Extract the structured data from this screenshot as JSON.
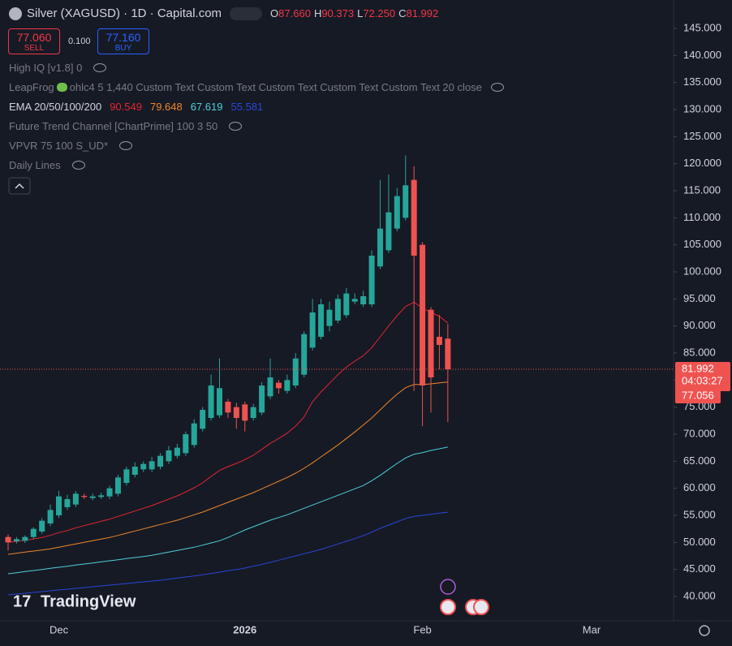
{
  "header": {
    "title": "Silver (XAGUSD) · 1D · Capital.com",
    "ohlc": [
      {
        "key": "O",
        "value": "87.660"
      },
      {
        "key": "H",
        "value": "90.373"
      },
      {
        "key": "L",
        "value": "72.250"
      },
      {
        "key": "C",
        "value": "81.992"
      }
    ]
  },
  "trade": {
    "sell_price": "77.060",
    "sell": "SELL",
    "spread": "0.100",
    "buy_price": "77.160",
    "buy": "BUY"
  },
  "indicators": {
    "high_iq": "High IQ [v1.8] 0",
    "leapfrog": "LeapFrog",
    "leapfrog_params": "ohlc4 5 1,440 Custom Text Custom Text Custom Text Custom Text Custom Text 20 close",
    "ema": "EMA 20/50/100/200",
    "future_trend": "Future Trend Channel [ChartPrime] 100 3 50",
    "vpvr": "VPVR 75 100 S_UD*",
    "daily_lines": "Daily Lines"
  },
  "branding": "TradingView",
  "chart_data": {
    "type": "candlestick",
    "categories": [
      null,
      null,
      null,
      null,
      null,
      null,
      "Dec",
      null,
      null,
      null,
      null,
      null,
      null,
      null,
      null,
      null,
      null,
      null,
      null,
      null,
      null,
      null,
      null,
      null,
      null,
      null,
      null,
      null,
      "2026",
      null,
      null,
      null,
      null,
      null,
      null,
      null,
      null,
      null,
      null,
      null,
      null,
      null,
      null,
      null,
      null,
      null,
      null,
      null,
      null,
      "Feb",
      null,
      null,
      null,
      null,
      null,
      null,
      null,
      null,
      null,
      null,
      null,
      null,
      null,
      null,
      null,
      null,
      null,
      null,
      null,
      "Mar"
    ],
    "open": [
      51,
      50.2,
      50.3,
      51,
      52,
      53.5,
      55,
      56.5,
      57,
      58.6,
      58.2,
      58.4,
      58.5,
      59,
      61,
      62.5,
      63.5,
      63.5,
      64,
      65,
      66,
      66.5,
      68,
      71,
      73,
      73.5,
      76,
      75,
      75.5,
      73,
      74,
      77,
      79.5,
      78,
      79,
      81,
      86,
      88,
      90,
      91,
      92,
      94.5,
      94,
      94,
      101,
      104,
      108,
      110,
      117,
      105,
      93,
      88,
      87.66,
      null,
      null,
      null,
      null,
      null,
      null,
      null,
      null,
      null,
      null,
      null,
      null,
      null,
      null,
      null,
      null,
      null
    ],
    "high": [
      51.5,
      51,
      51.3,
      52.8,
      54.5,
      57,
      59.5,
      58.8,
      59.5,
      59,
      59,
      59.2,
      60.5,
      62.5,
      64,
      64.8,
      65,
      65.8,
      66.5,
      67.8,
      68.2,
      70.5,
      72.8,
      75,
      81,
      84,
      76.5,
      75.8,
      76,
      75.6,
      79.6,
      84,
      80,
      81,
      85,
      89,
      95,
      95,
      94.5,
      95.8,
      97,
      96,
      96.5,
      104,
      117,
      118,
      115.5,
      121.5,
      119.5,
      105.5,
      93.5,
      92,
      90.373,
      null,
      null,
      null,
      null,
      null,
      null,
      null,
      null,
      null,
      null,
      null,
      null,
      null,
      null,
      null,
      null,
      null
    ],
    "low": [
      48.5,
      49.8,
      49.9,
      50.6,
      51.6,
      53,
      54.5,
      56,
      56.5,
      58,
      57.8,
      58,
      58,
      58.5,
      60.5,
      62,
      63,
      63,
      63.5,
      64.5,
      65.5,
      66,
      67.5,
      70.5,
      72.5,
      73,
      73,
      71,
      70.5,
      72.5,
      73.5,
      76.5,
      77.5,
      77.5,
      78.5,
      80.5,
      85.5,
      87.5,
      89,
      90.5,
      91.5,
      94,
      93.5,
      93.5,
      100.5,
      103.5,
      107.5,
      109.5,
      78,
      71.5,
      74,
      82,
      72.25,
      null,
      null,
      null,
      null,
      null,
      null,
      null,
      null,
      null,
      null,
      null,
      null,
      null,
      null,
      null,
      null,
      null
    ],
    "close": [
      50,
      50.6,
      51,
      52.5,
      54,
      56,
      58.5,
      58,
      59,
      58.4,
      58.5,
      58.7,
      60,
      62,
      63.5,
      64,
      64.5,
      65,
      66,
      67,
      67.5,
      70,
      72,
      74.5,
      79,
      78.5,
      74,
      73,
      72.5,
      75,
      79,
      80.5,
      78.5,
      80,
      84,
      88.5,
      92.5,
      94,
      93,
      95,
      96,
      95,
      95.5,
      103,
      108,
      111,
      114,
      116,
      103,
      79,
      80.5,
      86.5,
      81.992,
      null,
      null,
      null,
      null,
      null,
      null,
      null,
      null,
      null,
      null,
      null,
      null,
      null,
      null,
      null,
      null,
      null
    ],
    "up_color": "#26a69a",
    "down_color": "#ef5350",
    "series": [
      {
        "color": "#e3262e",
        "values": [
          50.0,
          50.2,
          50.4,
          50.6,
          50.9,
          51.3,
          51.8,
          52.2,
          52.7,
          53.1,
          53.5,
          53.9,
          54.3,
          54.8,
          55.3,
          55.8,
          56.3,
          56.8,
          57.4,
          58.0,
          58.6,
          59.3,
          60.1,
          61.0,
          62.2,
          63.3,
          64.0,
          64.6,
          65.3,
          66.1,
          67.2,
          68.3,
          69.2,
          70.2,
          71.5,
          73.2,
          76.0,
          77.8,
          79.4,
          81.0,
          82.4,
          83.5,
          84.5,
          86.0,
          88.0,
          90.0,
          91.9,
          93.6,
          94.4,
          93.3,
          92.5,
          91.8,
          90.549,
          null,
          null,
          null,
          null,
          null,
          null,
          null,
          null,
          null,
          null,
          null,
          null,
          null,
          null,
          null,
          null,
          null
        ]
      },
      {
        "color": "#f0862a",
        "values": [
          47.8,
          48.0,
          48.2,
          48.4,
          48.6,
          48.8,
          49.1,
          49.4,
          49.7,
          50.0,
          50.3,
          50.6,
          50.9,
          51.3,
          51.7,
          52.1,
          52.5,
          52.9,
          53.3,
          53.7,
          54.1,
          54.6,
          55.1,
          55.6,
          56.2,
          56.8,
          57.4,
          58.0,
          58.6,
          59.2,
          59.9,
          60.6,
          61.3,
          62.0,
          62.8,
          63.7,
          64.7,
          65.8,
          66.9,
          68.0,
          69.2,
          70.4,
          71.7,
          73.0,
          74.5,
          76.0,
          77.4,
          78.6,
          79.2,
          79.2,
          79.3,
          79.5,
          79.648,
          null,
          null,
          null,
          null,
          null,
          null,
          null,
          null,
          null,
          null,
          null,
          null,
          null,
          null,
          null,
          null,
          null
        ]
      },
      {
        "color": "#4dd0d6",
        "values": [
          44.2,
          44.4,
          44.6,
          44.8,
          45.0,
          45.2,
          45.4,
          45.6,
          45.8,
          46.0,
          46.2,
          46.4,
          46.6,
          46.8,
          47.0,
          47.2,
          47.4,
          47.6,
          47.9,
          48.2,
          48.5,
          48.8,
          49.1,
          49.5,
          49.9,
          50.3,
          50.9,
          51.6,
          52.3,
          52.9,
          53.5,
          54.1,
          54.6,
          55.1,
          55.7,
          56.3,
          56.9,
          57.5,
          58.1,
          58.7,
          59.3,
          59.9,
          60.5,
          61.4,
          62.4,
          63.5,
          64.6,
          65.6,
          66.3,
          66.6,
          67.0,
          67.3,
          67.619,
          null,
          null,
          null,
          null,
          null,
          null,
          null,
          null,
          null,
          null,
          null,
          null,
          null,
          null,
          null,
          null,
          null
        ]
      },
      {
        "color": "#2a46d6",
        "values": [
          40.3,
          40.45,
          40.6,
          40.75,
          40.9,
          41.05,
          41.2,
          41.35,
          41.5,
          41.65,
          41.8,
          41.95,
          42.1,
          42.25,
          42.4,
          42.55,
          42.7,
          42.85,
          43.0,
          43.2,
          43.4,
          43.6,
          43.8,
          44.0,
          44.25,
          44.5,
          44.75,
          45.0,
          45.25,
          45.6,
          45.95,
          46.3,
          46.7,
          47.1,
          47.5,
          47.9,
          48.3,
          48.7,
          49.2,
          49.7,
          50.2,
          50.7,
          51.25,
          51.9,
          52.6,
          53.2,
          53.8,
          54.4,
          54.8,
          55.0,
          55.2,
          55.4,
          55.581,
          null,
          null,
          null,
          null,
          null,
          null,
          null,
          null,
          null,
          null,
          null,
          null,
          null,
          null,
          null,
          null,
          null
        ]
      }
    ],
    "countdown": "04:03:27",
    "bid_price": 77.056,
    "ylim": [
      35.5,
      150.25
    ],
    "yticks": [
      {
        "value": 40,
        "label": "40.000"
      },
      {
        "value": 45,
        "label": "45.000"
      },
      {
        "value": 50,
        "label": "50.000"
      },
      {
        "value": 55,
        "label": "55.000"
      },
      {
        "value": 60,
        "label": "60.000"
      },
      {
        "value": 65,
        "label": "65.000"
      },
      {
        "value": 70,
        "label": "70.000"
      },
      {
        "value": 75,
        "label": "75.000"
      },
      {
        "value": 80,
        "label": "80.000"
      },
      {
        "value": 85,
        "label": "85.000"
      },
      {
        "value": 90,
        "label": "90.000"
      },
      {
        "value": 95,
        "label": "95.000"
      },
      {
        "value": 100,
        "label": "100.000"
      },
      {
        "value": 105,
        "label": "105.000"
      },
      {
        "value": 110,
        "label": "110.000"
      },
      {
        "value": 115,
        "label": "115.000"
      },
      {
        "value": 120,
        "label": "120.000"
      },
      {
        "value": 125,
        "label": "125.000"
      },
      {
        "value": 130,
        "label": "130.000"
      },
      {
        "value": 135,
        "label": "135.000"
      },
      {
        "value": 140,
        "label": "140.000"
      },
      {
        "value": 145,
        "label": "145.000"
      }
    ]
  }
}
